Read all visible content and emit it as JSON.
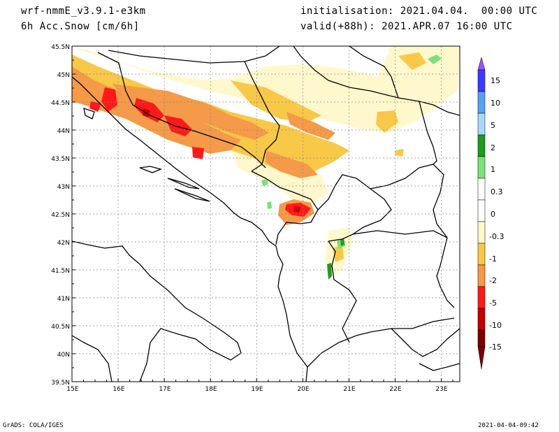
{
  "header": {
    "model": "wrf-nmmE_v3.9.1-e3km",
    "field": "6h Acc.Snow [cm/6h]",
    "init": "initialisation: 2021.04.04.  00:00 UTC",
    "valid": "valid(+88h): 2021.APR.07 16:00 UTC"
  },
  "footer": {
    "credit": "GrADS: COLA/IGES",
    "timestamp": "2021-04-04-09:42"
  },
  "axes": {
    "lat_ticks": [
      "45.5N",
      "45N",
      "44.5N",
      "44N",
      "43.5N",
      "43N",
      "42.5N",
      "42N",
      "41.5N",
      "41N",
      "40.5N",
      "40N",
      "39.5N"
    ],
    "lon_ticks": [
      "15E",
      "16E",
      "17E",
      "18E",
      "19E",
      "20E",
      "21E",
      "22E",
      "23E"
    ],
    "lat_range": [
      39.5,
      45.5
    ],
    "lon_range": [
      15.0,
      23.4
    ]
  },
  "colorbar": {
    "labels": [
      "15",
      "10",
      "5",
      "2",
      "1",
      "0.3",
      "0",
      "-0.3",
      "-1",
      "-2",
      "-5",
      "-10",
      "-15"
    ],
    "colors": [
      "#9955ff",
      "#3a3aff",
      "#5aa0f0",
      "#a8d8f8",
      "#1f9a1f",
      "#7ce07c",
      "#ffffff",
      "#fff8cc",
      "#f8c848",
      "#f49a48",
      "#ff1a1a",
      "#c40000",
      "#7a0000"
    ]
  }
}
